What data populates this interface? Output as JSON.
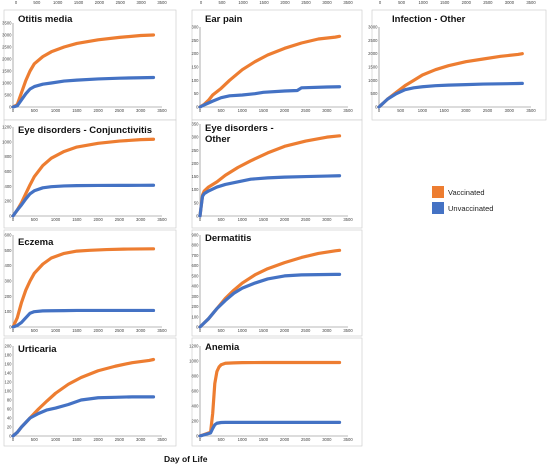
{
  "chart_data": {
    "type": "line",
    "xlabel": "Day of Life",
    "legend": {
      "placement": "right",
      "entries": [
        {
          "name": "Vaccinated",
          "color": "#ED7D31"
        },
        {
          "name": "Unvaccinated",
          "color": "#4472C4"
        }
      ]
    },
    "top_axis_ticks": [
      "0",
      "500",
      "1000",
      "1500",
      "2000",
      "2500",
      "3000",
      "3500"
    ],
    "panels": [
      {
        "title": "Otitis media",
        "ylim": [
          0,
          3500
        ],
        "yticks": [
          0,
          500,
          1000,
          1500,
          2000,
          2500,
          3000,
          3500
        ],
        "xlim": [
          0,
          3500
        ],
        "xticks": [
          0,
          500,
          1000,
          1500,
          2000,
          2500,
          3000,
          3500
        ],
        "series": [
          {
            "name": "Vaccinated",
            "x": [
              0,
              100,
              200,
              300,
              400,
              500,
              700,
              900,
              1200,
              1500,
              2000,
              2500,
              3000,
              3300
            ],
            "y": [
              0,
              100,
              600,
              1100,
              1500,
              1800,
              2100,
              2300,
              2500,
              2650,
              2800,
              2900,
              2980,
              3000
            ]
          },
          {
            "name": "Unvaccinated",
            "x": [
              0,
              100,
              200,
              300,
              400,
              500,
              700,
              900,
              1200,
              1500,
              2000,
              2500,
              3000,
              3300
            ],
            "y": [
              0,
              50,
              300,
              550,
              750,
              850,
              950,
              1000,
              1080,
              1120,
              1170,
              1200,
              1220,
              1230
            ]
          }
        ]
      },
      {
        "title": "Ear pain",
        "ylim": [
          0,
          300
        ],
        "yticks": [
          0,
          50,
          100,
          150,
          200,
          250,
          300
        ],
        "xlim": [
          0,
          3500
        ],
        "xticks": [
          0,
          500,
          1000,
          1500,
          2000,
          2500,
          3000,
          3500
        ],
        "series": [
          {
            "name": "Vaccinated",
            "x": [
              0,
              100,
              200,
              300,
              500,
              700,
              1000,
              1300,
              1600,
              2000,
              2400,
              2800,
              3200,
              3300
            ],
            "y": [
              0,
              10,
              25,
              45,
              70,
              100,
              140,
              170,
              195,
              220,
              240,
              255,
              262,
              265
            ]
          },
          {
            "name": "Unvaccinated",
            "x": [
              0,
              100,
              200,
              300,
              500,
              700,
              1000,
              1300,
              1500,
              2000,
              2300,
              2400,
              3000,
              3300
            ],
            "y": [
              0,
              8,
              15,
              22,
              35,
              42,
              45,
              50,
              55,
              60,
              62,
              72,
              75,
              76
            ]
          }
        ]
      },
      {
        "title": "Infection - Other",
        "ylim": [
          0,
          3000
        ],
        "yticks": [
          0,
          500,
          1000,
          1500,
          2000,
          2500,
          3000
        ],
        "xlim": [
          0,
          3500
        ],
        "xticks": [
          0,
          500,
          1000,
          1500,
          2000,
          2500,
          3000,
          3500
        ],
        "series": [
          {
            "name": "Vaccinated",
            "x": [
              0,
              100,
              200,
              400,
              600,
              800,
              1000,
              1300,
              1600,
              2000,
              2400,
              2800,
              3200,
              3300
            ],
            "y": [
              0,
              150,
              300,
              550,
              800,
              1000,
              1200,
              1400,
              1550,
              1700,
              1800,
              1900,
              1970,
              2000
            ]
          },
          {
            "name": "Unvaccinated",
            "x": [
              0,
              100,
              200,
              400,
              600,
              800,
              1000,
              1300,
              1600,
              2000,
              2400,
              2800,
              3200,
              3300
            ],
            "y": [
              0,
              150,
              300,
              500,
              650,
              720,
              760,
              800,
              820,
              840,
              860,
              870,
              880,
              885
            ]
          }
        ]
      },
      {
        "title": "Eye disorders - Conjunctivitis",
        "ylim": [
          0,
          1200
        ],
        "yticks": [
          0,
          200,
          400,
          600,
          800,
          1000,
          1200
        ],
        "xlim": [
          0,
          3500
        ],
        "xticks": [
          0,
          500,
          1000,
          1500,
          2000,
          2500,
          3000,
          3500
        ],
        "series": [
          {
            "name": "Vaccinated",
            "x": [
              0,
              100,
              200,
              300,
              400,
              500,
              700,
              900,
              1200,
              1500,
              2000,
              2500,
              3000,
              3300
            ],
            "y": [
              0,
              80,
              180,
              300,
              420,
              530,
              680,
              780,
              870,
              930,
              980,
              1010,
              1030,
              1035
            ]
          },
          {
            "name": "Unvaccinated",
            "x": [
              0,
              100,
              200,
              300,
              400,
              500,
              700,
              900,
              1200,
              1500,
              2000,
              2500,
              3000,
              3300
            ],
            "y": [
              0,
              80,
              150,
              230,
              300,
              340,
              380,
              395,
              405,
              410,
              412,
              413,
              414,
              415
            ]
          }
        ]
      },
      {
        "title": "Eye disorders - Other",
        "ylim": [
          0,
          350
        ],
        "yticks": [
          0,
          50,
          100,
          150,
          200,
          250,
          300,
          350
        ],
        "xlim": [
          0,
          3500
        ],
        "xticks": [
          0,
          500,
          1000,
          1500,
          2000,
          2500,
          3000,
          3500
        ],
        "series": [
          {
            "name": "Vaccinated",
            "x": [
              0,
              30,
              60,
              100,
              200,
              400,
              600,
              900,
              1200,
              1600,
              2000,
              2500,
              3000,
              3300
            ],
            "y": [
              0,
              40,
              80,
              95,
              110,
              130,
              155,
              185,
              210,
              240,
              265,
              285,
              300,
              305
            ]
          },
          {
            "name": "Unvaccinated",
            "x": [
              0,
              30,
              60,
              100,
              200,
              400,
              600,
              900,
              1200,
              1600,
              2000,
              2500,
              3000,
              3300
            ],
            "y": [
              0,
              40,
              75,
              85,
              95,
              110,
              120,
              130,
              140,
              145,
              148,
              150,
              152,
              153
            ]
          }
        ]
      },
      {
        "title": "Eczema",
        "ylim": [
          0,
          600
        ],
        "yticks": [
          0,
          100,
          200,
          300,
          400,
          500,
          600
        ],
        "xlim": [
          0,
          3500
        ],
        "xticks": [
          0,
          500,
          1000,
          1500,
          2000,
          2500,
          3000,
          3500
        ],
        "series": [
          {
            "name": "Vaccinated",
            "x": [
              0,
              100,
              200,
              300,
              400,
              500,
              700,
              900,
              1200,
              1500,
              1800,
              2200,
              2600,
              3300
            ],
            "y": [
              0,
              60,
              160,
              240,
              300,
              350,
              410,
              450,
              480,
              495,
              500,
              505,
              508,
              510
            ]
          },
          {
            "name": "Unvaccinated",
            "x": [
              0,
              100,
              200,
              300,
              400,
              500,
              700,
              900,
              1200,
              1500,
              1800,
              2200,
              2600,
              3300
            ],
            "y": [
              0,
              10,
              30,
              60,
              90,
              100,
              105,
              106,
              107,
              108,
              108,
              108,
              108,
              108
            ]
          }
        ]
      },
      {
        "title": "Dermatitis",
        "ylim": [
          0,
          900
        ],
        "yticks": [
          0,
          100,
          200,
          300,
          400,
          500,
          600,
          700,
          800,
          900
        ],
        "xlim": [
          0,
          3500
        ],
        "xticks": [
          0,
          500,
          1000,
          1500,
          2000,
          2500,
          3000,
          3500
        ],
        "series": [
          {
            "name": "Vaccinated",
            "x": [
              0,
              100,
              200,
              400,
              600,
              800,
              1000,
              1300,
              1600,
              2000,
              2400,
              2800,
              3200,
              3300
            ],
            "y": [
              0,
              40,
              80,
              180,
              280,
              360,
              430,
              510,
              570,
              630,
              680,
              720,
              745,
              750
            ]
          },
          {
            "name": "Unvaccinated",
            "x": [
              0,
              100,
              200,
              400,
              600,
              800,
              1000,
              1300,
              1600,
              2000,
              2400,
              2800,
              3200,
              3300
            ],
            "y": [
              0,
              40,
              80,
              180,
              260,
              330,
              380,
              430,
              470,
              500,
              510,
              512,
              515,
              515
            ]
          }
        ]
      },
      {
        "title": "Urticaria",
        "ylim": [
          0,
          200
        ],
        "yticks": [
          0,
          20,
          40,
          60,
          80,
          100,
          120,
          140,
          160,
          180,
          200
        ],
        "xlim": [
          0,
          3500
        ],
        "xticks": [
          0,
          500,
          1000,
          1500,
          2000,
          2500,
          3000,
          3500
        ],
        "series": [
          {
            "name": "Vaccinated",
            "x": [
              0,
              100,
              200,
              400,
              600,
              800,
              1000,
              1300,
              1600,
              2000,
              2400,
              2800,
              3200,
              3300
            ],
            "y": [
              0,
              8,
              20,
              40,
              60,
              78,
              95,
              115,
              130,
              145,
              155,
              163,
              168,
              170
            ]
          },
          {
            "name": "Unvaccinated",
            "x": [
              0,
              100,
              200,
              400,
              600,
              800,
              1000,
              1300,
              1600,
              2000,
              2400,
              2800,
              3200,
              3300
            ],
            "y": [
              0,
              8,
              20,
              40,
              50,
              58,
              62,
              70,
              80,
              85,
              86,
              87,
              87,
              87
            ]
          }
        ]
      },
      {
        "title": "Anemia",
        "ylim": [
          0,
          1200
        ],
        "yticks": [
          0,
          200,
          400,
          600,
          800,
          1000,
          1200
        ],
        "xlim": [
          0,
          3500
        ],
        "xticks": [
          0,
          500,
          1000,
          1500,
          2000,
          2500,
          3000,
          3500
        ],
        "series": [
          {
            "name": "Vaccinated",
            "x": [
              0,
              250,
              300,
              350,
              400,
              450,
              500,
              600,
              800,
              1000,
              1500,
              2000,
              2500,
              3300
            ],
            "y": [
              0,
              50,
              300,
              700,
              860,
              920,
              950,
              970,
              975,
              978,
              980,
              980,
              980,
              980
            ]
          },
          {
            "name": "Unvaccinated",
            "x": [
              0,
              250,
              300,
              350,
              400,
              450,
              500,
              600,
              800,
              1000,
              1500,
              2000,
              2500,
              3300
            ],
            "y": [
              0,
              40,
              100,
              150,
              170,
              175,
              180,
              182,
              182,
              182,
              182,
              182,
              182,
              182
            ]
          }
        ]
      }
    ]
  }
}
